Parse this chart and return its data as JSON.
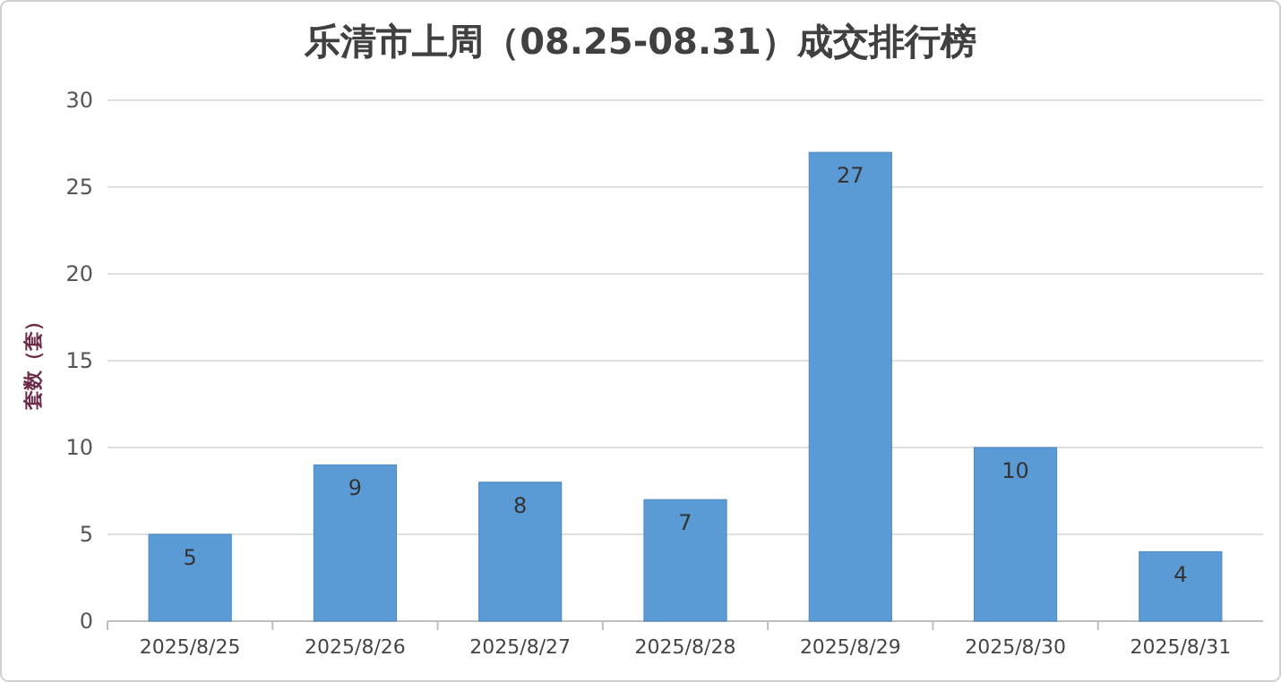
{
  "chart_data": {
    "type": "bar",
    "title": "乐清市上周（08.25-08.31）成交排行榜",
    "ylabel": "套数（套）",
    "categories": [
      "2025/8/25",
      "2025/8/26",
      "2025/8/27",
      "2025/8/28",
      "2025/8/29",
      "2025/8/30",
      "2025/8/31"
    ],
    "values": [
      5,
      9,
      8,
      7,
      27,
      10,
      4
    ],
    "color": "#5b9bd5",
    "ylim": [
      0,
      30
    ],
    "yticks": [
      0,
      5,
      10,
      15,
      20,
      25,
      30
    ],
    "grid": "y",
    "data_labels": true
  }
}
